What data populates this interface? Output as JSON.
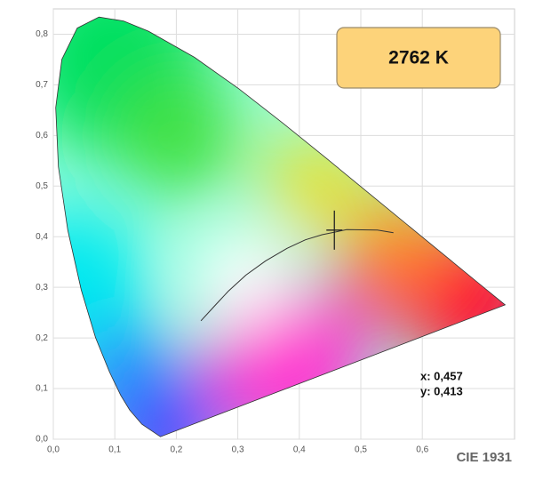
{
  "chart_data": {
    "type": "chromaticity",
    "title": "CIE 1931",
    "cct_label": "2762 K",
    "xlim": [
      0,
      0.75
    ],
    "ylim": [
      0,
      0.85
    ],
    "xticks": [
      {
        "value": 0,
        "label": "0,0"
      },
      {
        "value": 0.1,
        "label": "0,1"
      },
      {
        "value": 0.2,
        "label": "0,2"
      },
      {
        "value": 0.3,
        "label": "0,3"
      },
      {
        "value": 0.4,
        "label": "0,4"
      },
      {
        "value": 0.5,
        "label": "0,5"
      },
      {
        "value": 0.6,
        "label": "0,6"
      }
    ],
    "yticks": [
      {
        "value": 0,
        "label": "0,0"
      },
      {
        "value": 0.1,
        "label": "0,1"
      },
      {
        "value": 0.2,
        "label": "0,2"
      },
      {
        "value": 0.3,
        "label": "0,3"
      },
      {
        "value": 0.4,
        "label": "0,4"
      },
      {
        "value": 0.5,
        "label": "0,5"
      },
      {
        "value": 0.6,
        "label": "0,6"
      },
      {
        "value": 0.7,
        "label": "0,7"
      },
      {
        "value": 0.8,
        "label": "0,8"
      }
    ],
    "grid": true,
    "point": {
      "x": 0.457,
      "y": 0.413,
      "x_label": "x: 0,457",
      "y_label": "y: 0,413"
    }
  }
}
